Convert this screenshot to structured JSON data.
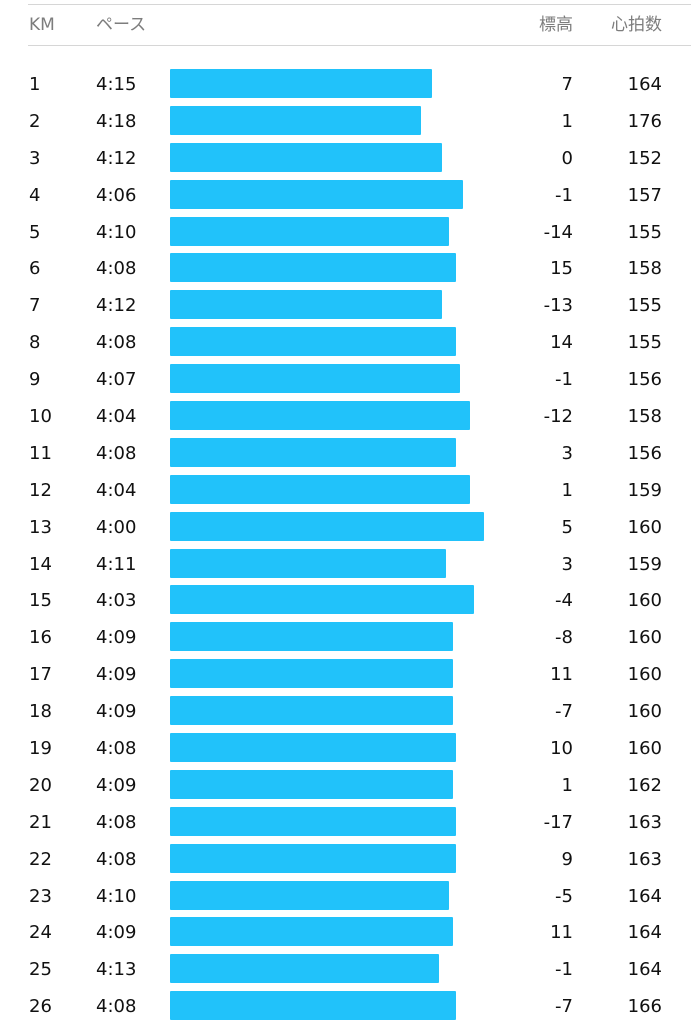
{
  "header": {
    "km": "KM",
    "pace": "ペース",
    "elevation": "標高",
    "heart_rate": "心拍数"
  },
  "colors": {
    "bar": "#21c2fa",
    "header_text": "#7d7d7d",
    "divider": "#d6d6d6"
  },
  "splits": [
    {
      "km": "1",
      "pace": "4:15",
      "elevation": "7",
      "heart_rate": "164"
    },
    {
      "km": "2",
      "pace": "4:18",
      "elevation": "1",
      "heart_rate": "176"
    },
    {
      "km": "3",
      "pace": "4:12",
      "elevation": "0",
      "heart_rate": "152"
    },
    {
      "km": "4",
      "pace": "4:06",
      "elevation": "-1",
      "heart_rate": "157"
    },
    {
      "km": "5",
      "pace": "4:10",
      "elevation": "-14",
      "heart_rate": "155"
    },
    {
      "km": "6",
      "pace": "4:08",
      "elevation": "15",
      "heart_rate": "158"
    },
    {
      "km": "7",
      "pace": "4:12",
      "elevation": "-13",
      "heart_rate": "155"
    },
    {
      "km": "8",
      "pace": "4:08",
      "elevation": "14",
      "heart_rate": "155"
    },
    {
      "km": "9",
      "pace": "4:07",
      "elevation": "-1",
      "heart_rate": "156"
    },
    {
      "km": "10",
      "pace": "4:04",
      "elevation": "-12",
      "heart_rate": "158"
    },
    {
      "km": "11",
      "pace": "4:08",
      "elevation": "3",
      "heart_rate": "156"
    },
    {
      "km": "12",
      "pace": "4:04",
      "elevation": "1",
      "heart_rate": "159"
    },
    {
      "km": "13",
      "pace": "4:00",
      "elevation": "5",
      "heart_rate": "160"
    },
    {
      "km": "14",
      "pace": "4:11",
      "elevation": "3",
      "heart_rate": "159"
    },
    {
      "km": "15",
      "pace": "4:03",
      "elevation": "-4",
      "heart_rate": "160"
    },
    {
      "km": "16",
      "pace": "4:09",
      "elevation": "-8",
      "heart_rate": "160"
    },
    {
      "km": "17",
      "pace": "4:09",
      "elevation": "11",
      "heart_rate": "160"
    },
    {
      "km": "18",
      "pace": "4:09",
      "elevation": "-7",
      "heart_rate": "160"
    },
    {
      "km": "19",
      "pace": "4:08",
      "elevation": "10",
      "heart_rate": "160"
    },
    {
      "km": "20",
      "pace": "4:09",
      "elevation": "1",
      "heart_rate": "162"
    },
    {
      "km": "21",
      "pace": "4:08",
      "elevation": "-17",
      "heart_rate": "163"
    },
    {
      "km": "22",
      "pace": "4:08",
      "elevation": "9",
      "heart_rate": "163"
    },
    {
      "km": "23",
      "pace": "4:10",
      "elevation": "-5",
      "heart_rate": "164"
    },
    {
      "km": "24",
      "pace": "4:09",
      "elevation": "11",
      "heart_rate": "164"
    },
    {
      "km": "25",
      "pace": "4:13",
      "elevation": "-1",
      "heart_rate": "164"
    },
    {
      "km": "26",
      "pace": "4:08",
      "elevation": "-7",
      "heart_rate": "166"
    }
  ]
}
